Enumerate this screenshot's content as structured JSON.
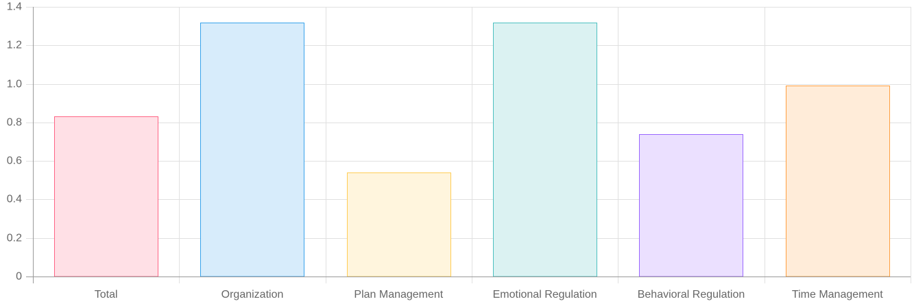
{
  "chart_data": {
    "type": "bar",
    "title": "",
    "xlabel": "",
    "ylabel": "",
    "categories": [
      "Total",
      "Organization",
      "Plan Management",
      "Emotional Regulation",
      "Behavioral Regulation",
      "Time Management"
    ],
    "values": [
      0.83,
      1.32,
      0.54,
      1.32,
      0.74,
      0.99
    ],
    "ylim": [
      0,
      1.4
    ],
    "yticks": [
      0,
      0.2,
      0.4,
      0.6,
      0.8,
      1.0,
      1.2,
      1.4
    ],
    "ytick_labels": [
      "0",
      "0.2",
      "0.4",
      "0.6",
      "0.8",
      "1.0",
      "1.2",
      "1.4"
    ],
    "grid": true,
    "legend": "none",
    "bar_fill_colors": [
      "#ffe0e6",
      "#d7ecfb",
      "#fff5dd",
      "#dbf2f2",
      "#ebe0ff",
      "#ffecd9"
    ],
    "bar_border_colors": [
      "#ff6384",
      "#36a2eb",
      "#ffcd56",
      "#4bc0c0",
      "#9966ff",
      "#ff9f40"
    ],
    "grid_color": "#e0e0e0",
    "axis_color": "#999999"
  }
}
